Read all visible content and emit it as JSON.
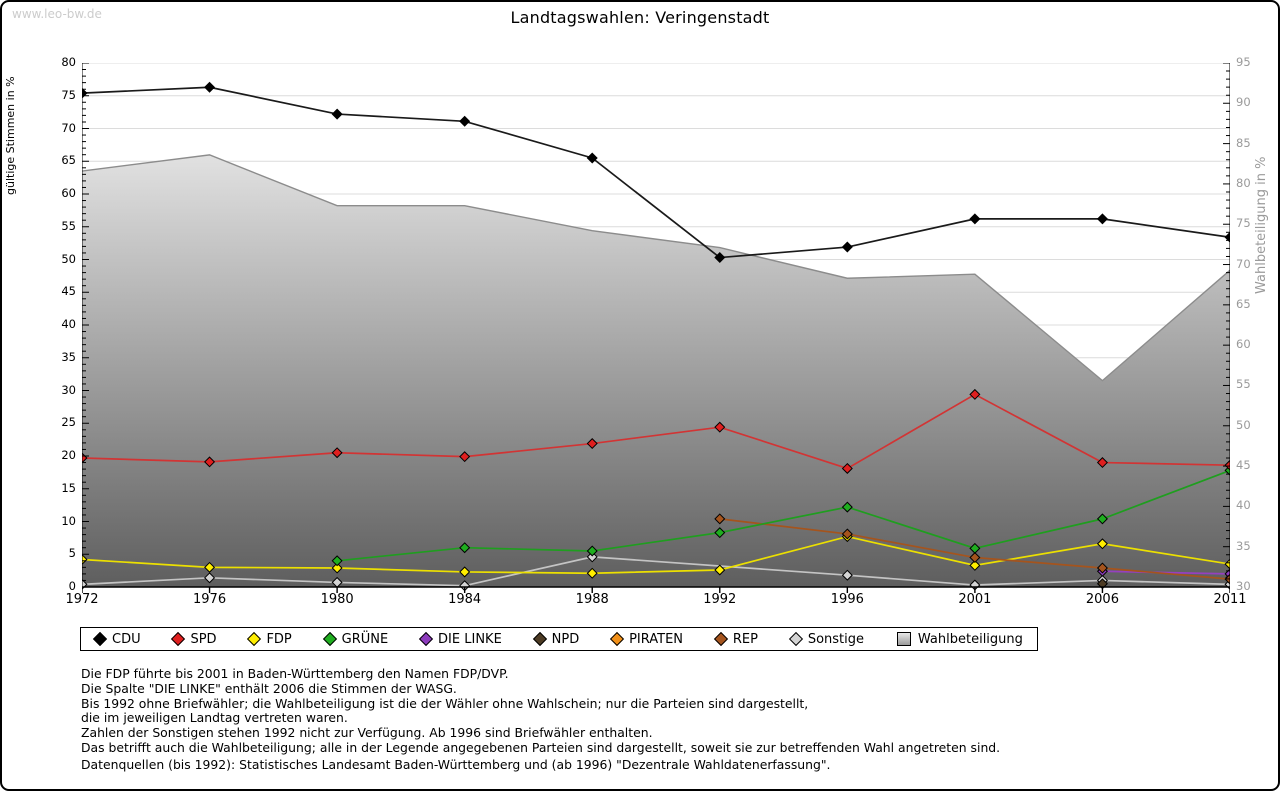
{
  "page": {
    "watermark": "www.leo-bw.de",
    "title": "Landtagswahlen: Veringenstadt"
  },
  "chart_data": {
    "type": "line",
    "title": "Landtagswahlen: Veringenstadt",
    "categories": [
      "1972",
      "1976",
      "1980",
      "1984",
      "1988",
      "1992",
      "1996",
      "2001",
      "2006",
      "2011"
    ],
    "left_axis": {
      "label": "gültige Stimmen in %",
      "min": 0,
      "max": 80,
      "step": 5
    },
    "right_axis": {
      "label": "Wahlbeteiligung in %",
      "min": 30,
      "max": 95,
      "step": 5
    },
    "grid": true,
    "legend_position": "bottom",
    "marker": "diamond",
    "series": [
      {
        "name": "CDU",
        "type": "line",
        "axis": "left",
        "color": "#000000",
        "line_color": "#1a1a1a",
        "values": [
          75.4,
          76.3,
          72.2,
          71.1,
          65.5,
          50.3,
          51.9,
          56.2,
          56.2,
          53.4
        ]
      },
      {
        "name": "SPD",
        "type": "line",
        "axis": "left",
        "color": "#e01f1f",
        "line_color": "#d23434",
        "values": [
          19.7,
          19.1,
          20.5,
          19.9,
          21.9,
          24.4,
          18.1,
          29.4,
          19.0,
          18.6
        ]
      },
      {
        "name": "FDP",
        "type": "line",
        "axis": "left",
        "color": "#ffee00",
        "line_color": "#ece000",
        "values": [
          4.2,
          3.0,
          2.9,
          2.3,
          2.1,
          2.6,
          7.7,
          3.3,
          6.6,
          3.5
        ]
      },
      {
        "name": "GRÜNE",
        "type": "line",
        "axis": "left",
        "color": "#1fae1f",
        "line_color": "#1f9e1f",
        "values": [
          null,
          null,
          4.0,
          6.0,
          5.5,
          8.3,
          12.2,
          5.9,
          10.4,
          17.8
        ]
      },
      {
        "name": "DIE LINKE",
        "type": "line",
        "axis": "left",
        "color": "#8d3bbd",
        "line_color": "#9540bf",
        "values": [
          null,
          null,
          null,
          null,
          null,
          null,
          null,
          null,
          2.4,
          2.0
        ]
      },
      {
        "name": "NPD",
        "type": "line",
        "axis": "left",
        "color": "#4d3b24",
        "line_color": "#4d3b24",
        "values": [
          null,
          null,
          null,
          null,
          null,
          null,
          null,
          null,
          0.5,
          null
        ]
      },
      {
        "name": "PIRATEN",
        "type": "line",
        "axis": "left",
        "color": "#f29018",
        "line_color": "#f29018",
        "values": [
          null,
          null,
          null,
          null,
          null,
          null,
          null,
          null,
          null,
          1.3
        ]
      },
      {
        "name": "REP",
        "type": "line",
        "axis": "left",
        "color": "#a5541d",
        "line_color": "#a5541d",
        "values": [
          null,
          null,
          null,
          null,
          null,
          10.4,
          8.1,
          4.5,
          2.9,
          1.2
        ]
      },
      {
        "name": "Sonstige",
        "type": "line",
        "axis": "left",
        "color": "#d4d4d4",
        "line_color": "#c4c4c4",
        "values": [
          0.4,
          1.4,
          0.7,
          0.2,
          4.6,
          null,
          1.8,
          0.3,
          1.0,
          0.4
        ]
      },
      {
        "name": "Wahlbeteiligung",
        "type": "area",
        "axis": "right",
        "color": "#c0c0c0",
        "line_color": "#8c8c8c",
        "values": [
          81.6,
          83.6,
          77.3,
          77.3,
          74.2,
          72.1,
          68.3,
          68.8,
          55.6,
          69.3
        ]
      }
    ],
    "colors": {
      "grid": "#dcdcdc",
      "axis": "#000000",
      "right_axis_text": "#9a9a9a",
      "area_top": "#fdfdfd",
      "area_bottom": "#5e5e5e"
    }
  },
  "footnotes": {
    "lines": [
      "Die FDP führte bis 2001 in Baden-Württemberg den Namen FDP/DVP.",
      "Die Spalte \"DIE LINKE\" enthält 2006 die Stimmen der WASG.",
      "Bis 1992 ohne Briefwähler; die Wahlbeteiligung ist die der Wähler ohne Wahlschein; nur die Parteien sind dargestellt,",
      "die im jeweiligen Landtag vertreten waren.",
      "Zahlen der Sonstigen stehen 1992 nicht zur Verfügung. Ab 1996 sind Briefwähler enthalten.",
      "Das betrifft auch die Wahlbeteiligung; alle in der Legende angegebenen Parteien sind dargestellt, soweit sie zur betreffenden Wahl angetreten sind."
    ],
    "source": "Datenquellen (bis 1992): Statistisches Landesamt Baden-Württemberg und (ab 1996) \"Dezentrale Wahldatenerfassung\"."
  }
}
